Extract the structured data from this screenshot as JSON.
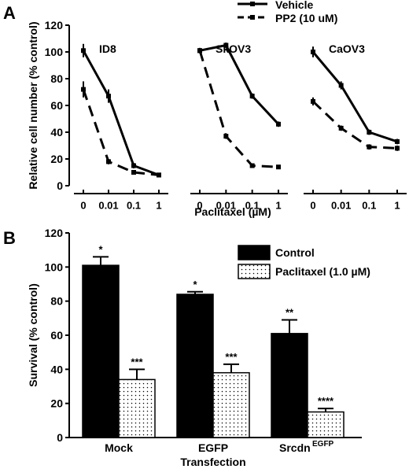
{
  "panel_a_label": "A",
  "panel_b_label": "B",
  "chart_data": [
    {
      "type": "line",
      "panel": "A",
      "ylabel": "Relative cell number (% control)",
      "xlabel": "Paclitaxel (µM)",
      "ylim": [
        0,
        120
      ],
      "yticks": [
        "0",
        "20",
        "40",
        "60",
        "80",
        "100",
        "120"
      ],
      "xticks": [
        "0",
        "0.01",
        "0.1",
        "1"
      ],
      "legend": [
        "Vehicle",
        "PP2 (10 uM)"
      ],
      "legend_position": "top-right",
      "subplots": [
        {
          "title": "ID8",
          "series": [
            {
              "name": "Vehicle",
              "values": [
                101,
                67,
                15,
                8
              ],
              "errors": [
                5,
                5,
                2,
                1
              ]
            },
            {
              "name": "PP2 (10 uM)",
              "values": [
                72,
                18,
                10,
                8
              ],
              "errors": [
                6,
                2,
                1,
                1
              ]
            }
          ]
        },
        {
          "title": "SkOV3",
          "series": [
            {
              "name": "Vehicle",
              "values": [
                101,
                105,
                67,
                46
              ],
              "errors": [
                2,
                2,
                2,
                2
              ]
            },
            {
              "name": "PP2 (10 uM)",
              "values": [
                101,
                37,
                15,
                14
              ],
              "errors": [
                2,
                2,
                1,
                1
              ]
            }
          ]
        },
        {
          "title": "CaOV3",
          "series": [
            {
              "name": "Vehicle",
              "values": [
                100,
                75,
                40,
                33
              ],
              "errors": [
                4,
                3,
                2,
                2
              ]
            },
            {
              "name": "PP2 (10 uM)",
              "values": [
                63,
                43,
                29,
                28
              ],
              "errors": [
                3,
                2,
                2,
                2
              ]
            }
          ]
        }
      ]
    },
    {
      "type": "bar",
      "panel": "B",
      "ylabel": "Survival (% control)",
      "xlabel": "Transfection",
      "ylim": [
        0,
        120
      ],
      "yticks": [
        "0",
        "20",
        "40",
        "60",
        "80",
        "100",
        "120"
      ],
      "categories": [
        "Mock",
        "EGFP",
        "Srcdn"
      ],
      "category_superscripts": [
        "",
        "",
        "EGFP"
      ],
      "legend_position": "top-right",
      "series": [
        {
          "name": "Control",
          "color": "#000000",
          "values": [
            101,
            84,
            61
          ],
          "errors": [
            5,
            1.5,
            8
          ],
          "annotations": [
            "*",
            "*",
            "**"
          ]
        },
        {
          "name": "Paclitaxel (1.0 µM)",
          "color": "#ffffff",
          "pattern": "dots",
          "values": [
            34,
            38,
            15
          ],
          "errors": [
            6,
            5,
            2
          ],
          "annotations": [
            "***",
            "***",
            "****"
          ]
        }
      ]
    }
  ]
}
